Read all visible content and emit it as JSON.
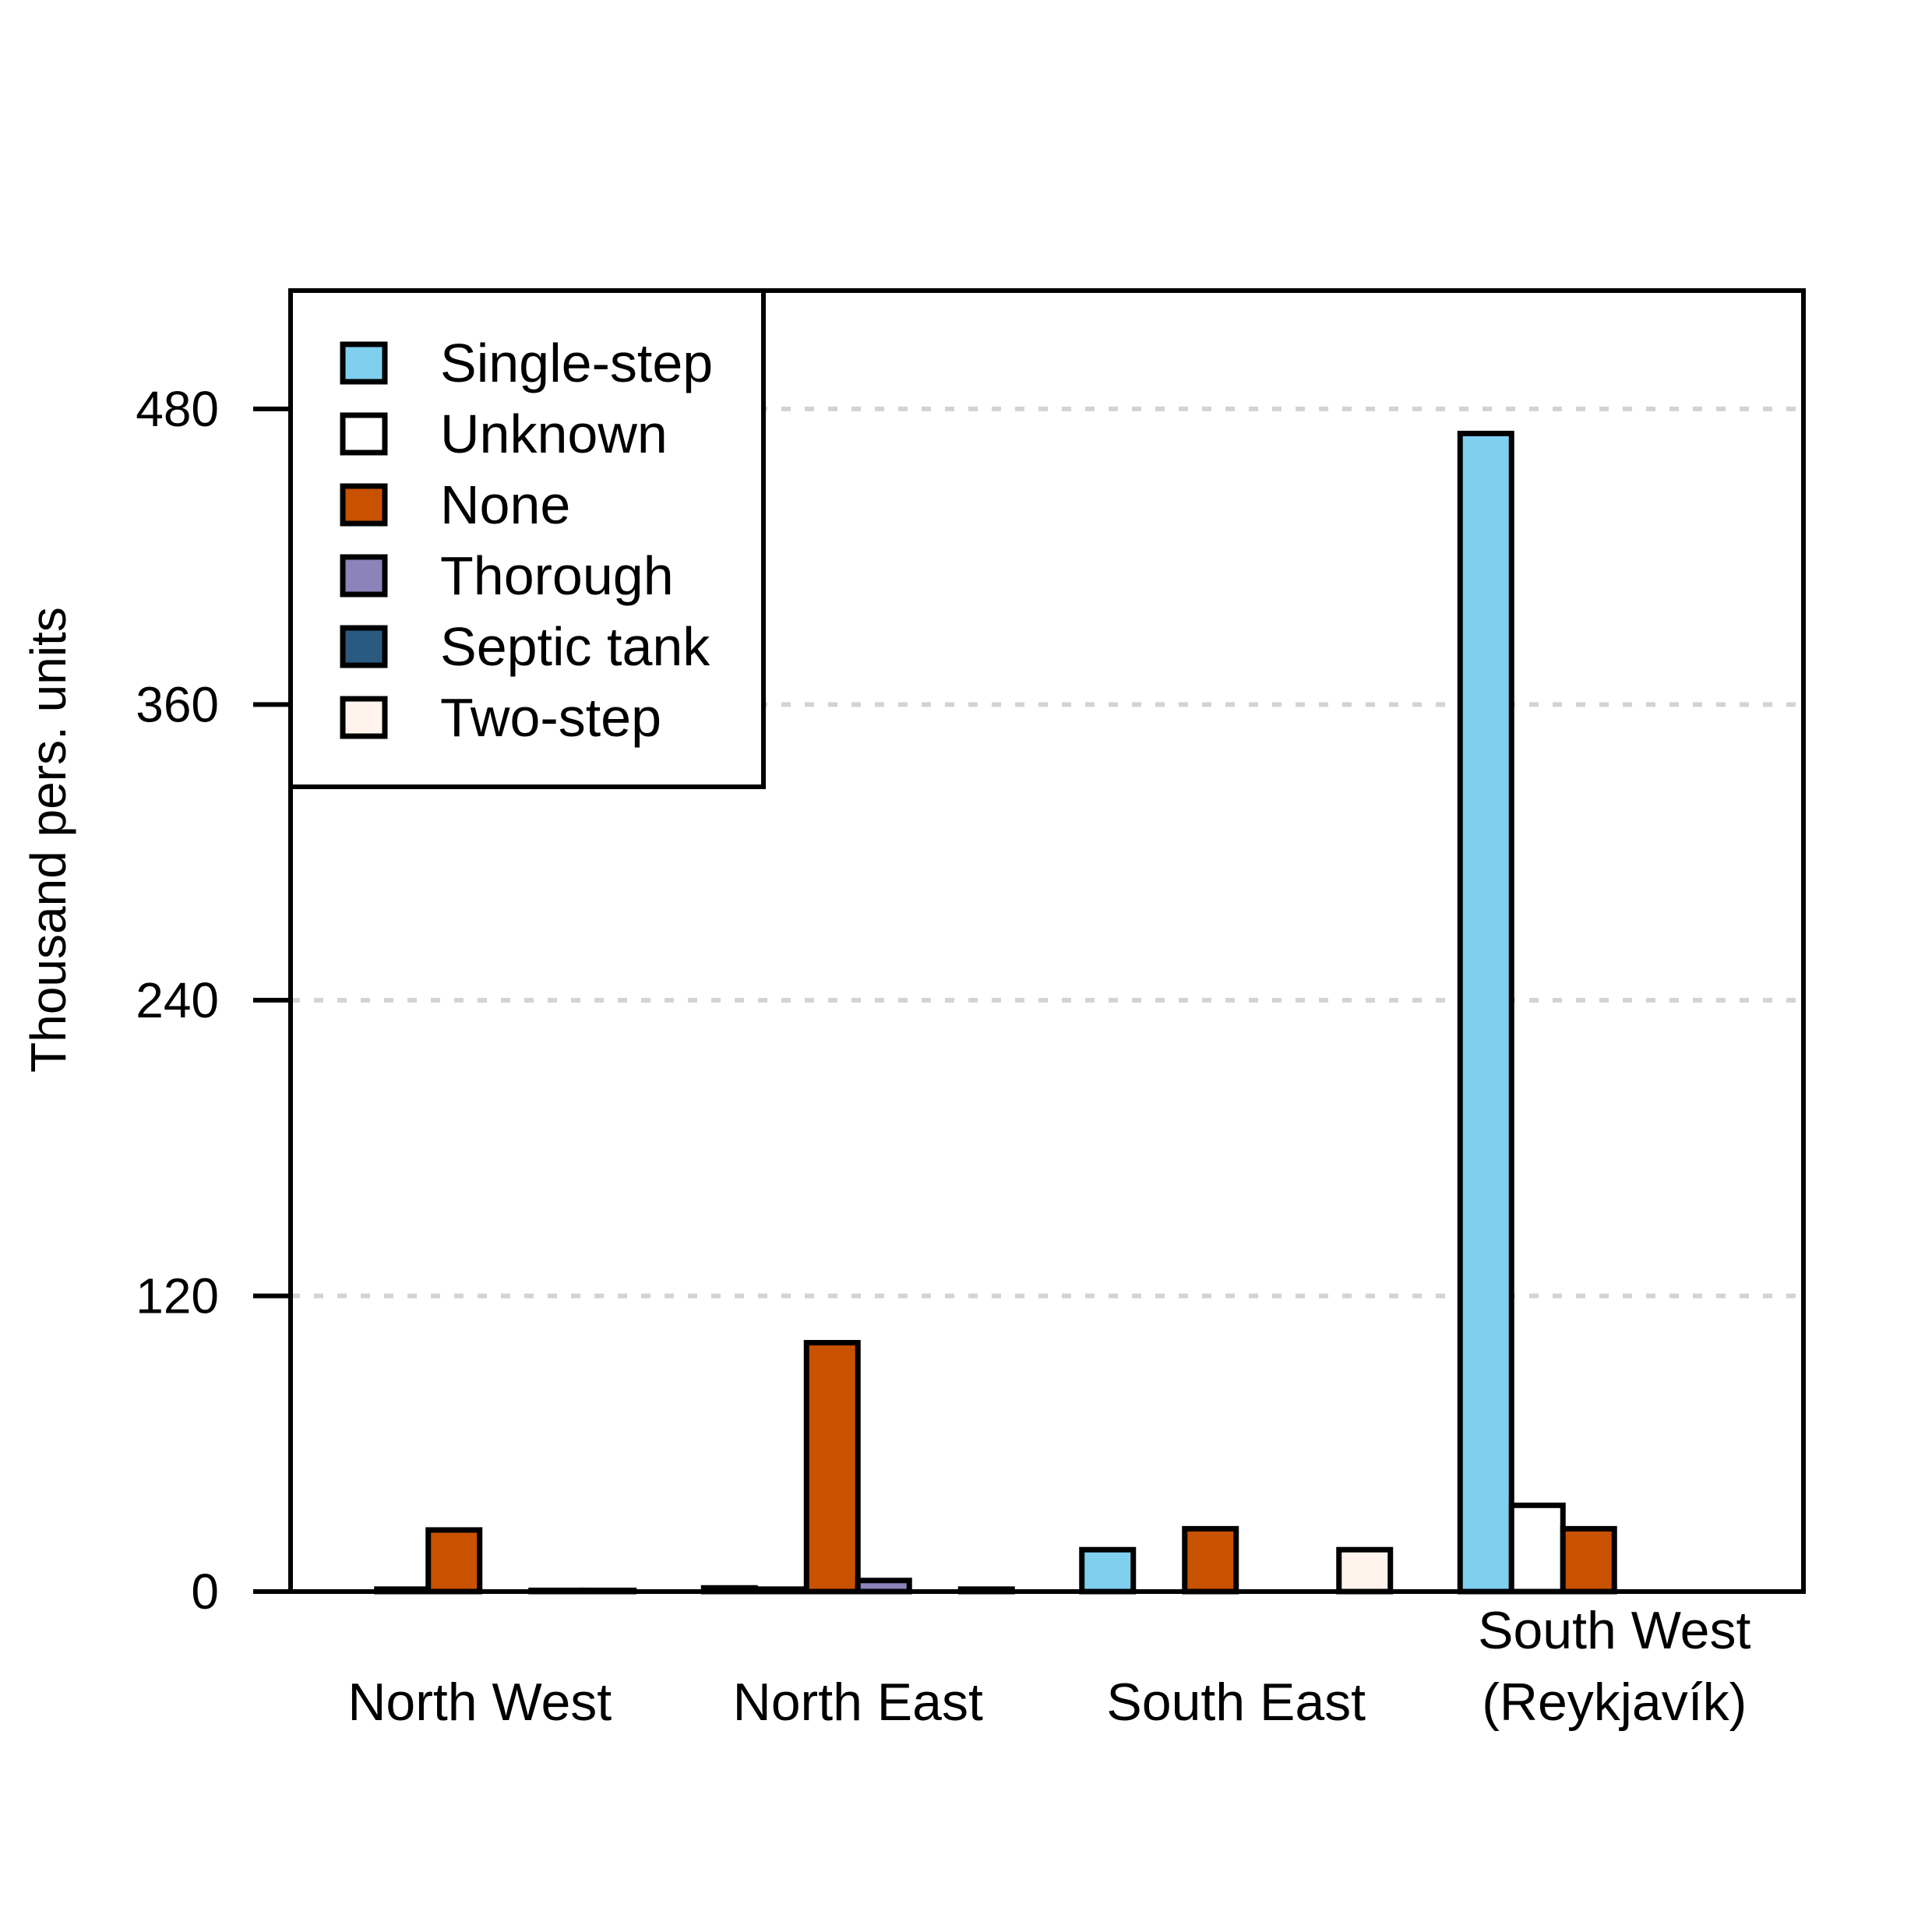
{
  "chart_data": {
    "type": "bar",
    "title": "",
    "xlabel": "",
    "ylabel": "Thousand pers. units",
    "ylim": [
      0,
      528
    ],
    "yticks": [
      0,
      120,
      240,
      360,
      480
    ],
    "grid": true,
    "legend_position": "top-left",
    "categories": [
      [
        "North West"
      ],
      [
        "North East"
      ],
      [
        "South East"
      ],
      [
        "South West",
        "(Reykjavík)"
      ]
    ],
    "series": [
      {
        "name": "Single-step",
        "color": "#7fcfef",
        "values": [
          0,
          1.5,
          17,
          470
        ]
      },
      {
        "name": "Unknown",
        "color": "#ffffff",
        "values": [
          1,
          1,
          0,
          35
        ]
      },
      {
        "name": "None",
        "color": "#c85200",
        "values": [
          25,
          101,
          25.5,
          25.5
        ]
      },
      {
        "name": "Thorough",
        "color": "#8b83b9",
        "values": [
          0,
          4.5,
          0,
          0
        ]
      },
      {
        "name": "Septic tank",
        "color": "#2a5a80",
        "values": [
          0.5,
          0,
          0,
          0
        ]
      },
      {
        "name": "Two-step",
        "color": "#fff3ec",
        "values": [
          0.5,
          1,
          17,
          0
        ]
      }
    ]
  }
}
